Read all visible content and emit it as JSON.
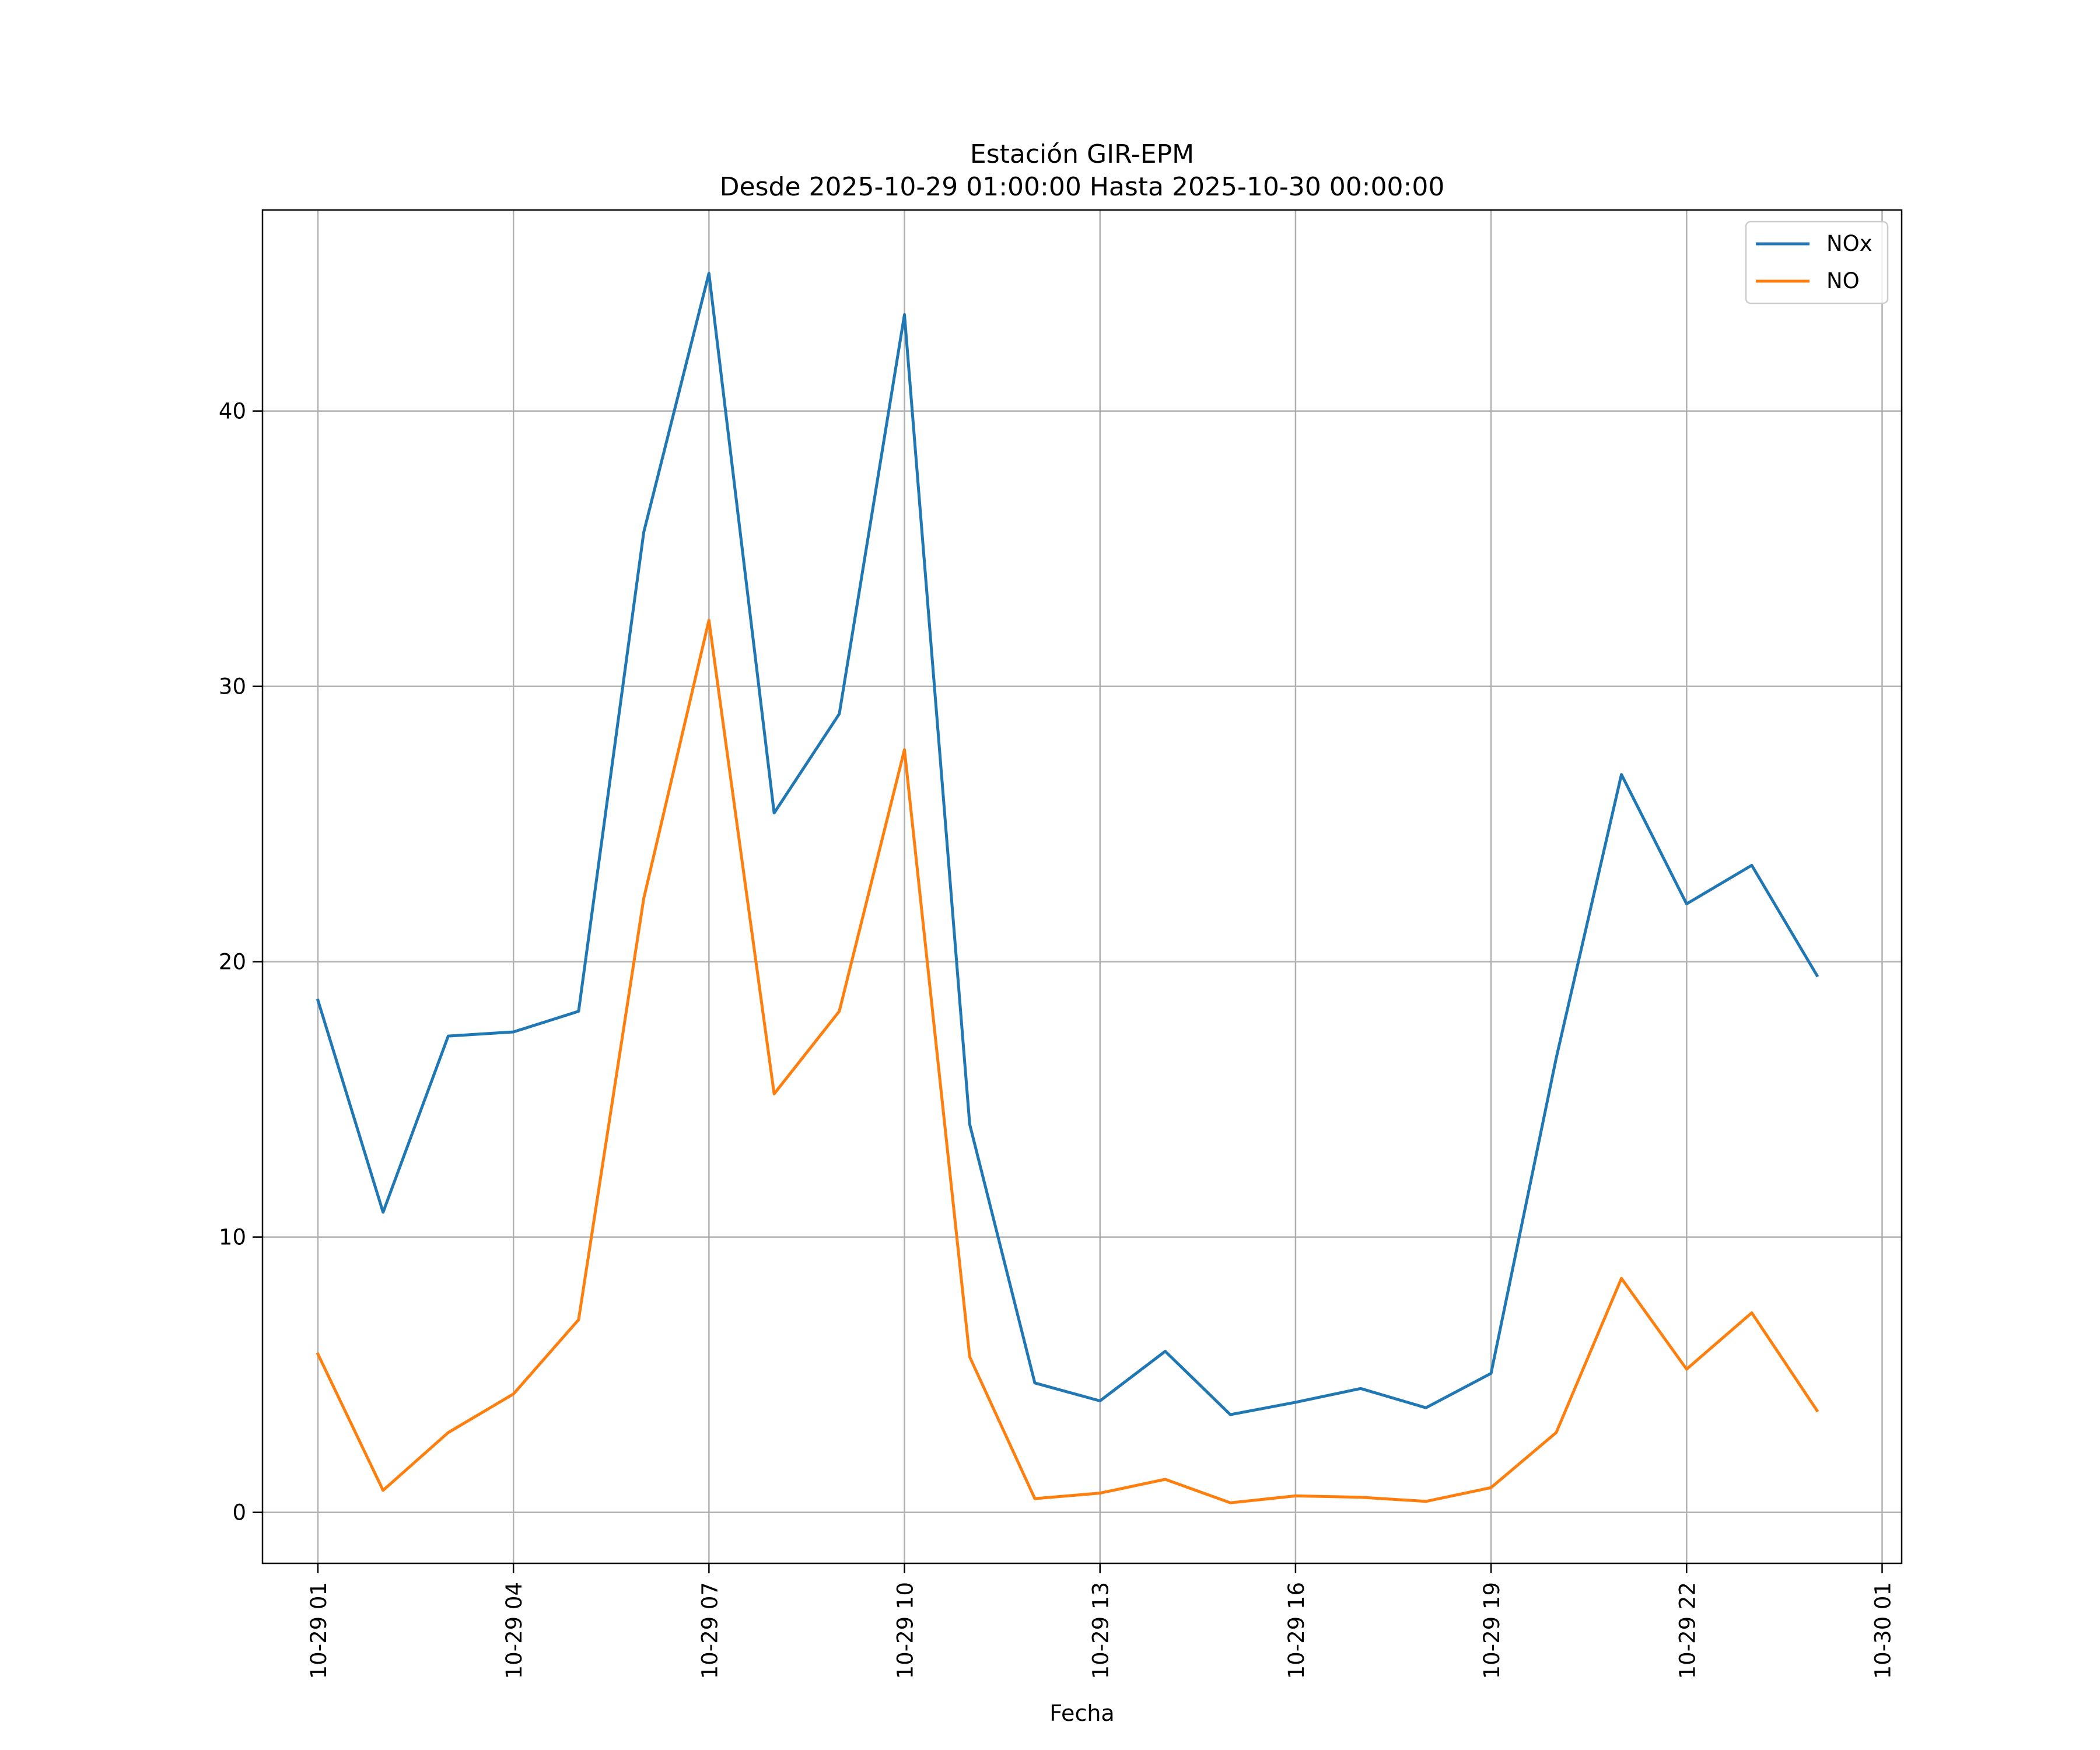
{
  "chart_data": {
    "type": "line",
    "title_line1": "Estación GIR-EPM",
    "title_line2": "Desde 2025-10-29 01:00:00 Hasta 2025-10-30 00:00:00",
    "xlabel": "Fecha",
    "ylabel": "",
    "x_unit": "hours since 2025-10-29 01:00",
    "xlim": [
      -0.85,
      24.3
    ],
    "ylim": [
      -1.85,
      47.3
    ],
    "x_ticks": [
      {
        "x": 0,
        "label": "10-29 01"
      },
      {
        "x": 3,
        "label": "10-29 04"
      },
      {
        "x": 6,
        "label": "10-29 07"
      },
      {
        "x": 9,
        "label": "10-29 10"
      },
      {
        "x": 12,
        "label": "10-29 13"
      },
      {
        "x": 15,
        "label": "10-29 16"
      },
      {
        "x": 18,
        "label": "10-29 19"
      },
      {
        "x": 21,
        "label": "10-29 22"
      },
      {
        "x": 24,
        "label": "10-30 01"
      }
    ],
    "y_ticks": [
      {
        "y": 0,
        "label": "0"
      },
      {
        "y": 10,
        "label": "10"
      },
      {
        "y": 20,
        "label": "20"
      },
      {
        "y": 30,
        "label": "30"
      },
      {
        "y": 40,
        "label": "40"
      }
    ],
    "grid": true,
    "legend_position": "top-right",
    "x": [
      0,
      1,
      2,
      3,
      4,
      5,
      6,
      7,
      8,
      9,
      10,
      11,
      12,
      13,
      14,
      15,
      16,
      17,
      18,
      19,
      20,
      21,
      22,
      23
    ],
    "series": [
      {
        "name": "NOx",
        "color": "#1f77b4",
        "values": [
          18.6,
          10.9,
          17.3,
          17.45,
          18.2,
          35.6,
          45.0,
          25.4,
          29.0,
          43.5,
          14.1,
          4.7,
          4.05,
          5.85,
          3.55,
          4.0,
          4.5,
          3.8,
          5.05,
          16.5,
          26.8,
          22.1,
          23.5,
          19.5
        ]
      },
      {
        "name": "NO",
        "color": "#ff7f0e",
        "values": [
          5.75,
          0.8,
          2.9,
          4.3,
          7.0,
          22.3,
          32.4,
          15.2,
          18.2,
          27.7,
          5.65,
          0.5,
          0.7,
          1.2,
          0.35,
          0.6,
          0.55,
          0.4,
          0.9,
          2.9,
          8.5,
          5.2,
          7.25,
          3.7
        ]
      }
    ]
  }
}
